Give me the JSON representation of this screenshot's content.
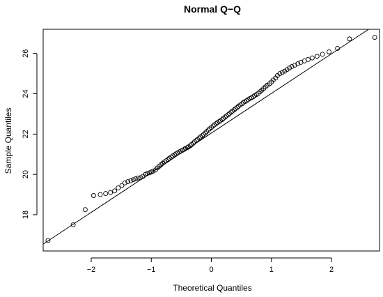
{
  "chart_data": {
    "type": "scatter",
    "title": "Normal Q−Q",
    "xlabel": "Theoretical Quantiles",
    "ylabel": "Sample Quantiles",
    "xlim": [
      -2.8,
      2.8
    ],
    "ylim": [
      16.2,
      27.2
    ],
    "xticks": [
      -2,
      -1,
      0,
      1,
      2
    ],
    "xtick_labels": [
      "−2",
      "−1",
      "0",
      "1",
      "2"
    ],
    "yticks": [
      18,
      20,
      22,
      24,
      26
    ],
    "ytick_labels": [
      "18",
      "20",
      "22",
      "24",
      "26"
    ],
    "grid": false,
    "reference_line": {
      "x1": -3.0,
      "y1": 16.15,
      "x2": 3.0,
      "y2": 27.95
    },
    "points": [
      [
        -2.72,
        16.72
      ],
      [
        -2.3,
        17.5
      ],
      [
        -2.1,
        18.25
      ],
      [
        -1.96,
        18.95
      ],
      [
        -1.85,
        19.0
      ],
      [
        -1.76,
        19.05
      ],
      [
        -1.68,
        19.1
      ],
      [
        -1.61,
        19.18
      ],
      [
        -1.55,
        19.33
      ],
      [
        -1.49,
        19.45
      ],
      [
        -1.44,
        19.58
      ],
      [
        -1.39,
        19.64
      ],
      [
        -1.34,
        19.69
      ],
      [
        -1.3,
        19.74
      ],
      [
        -1.26,
        19.78
      ],
      [
        -1.22,
        19.82
      ],
      [
        -1.18,
        19.84
      ],
      [
        -1.14,
        19.9
      ],
      [
        -1.1,
        20.0
      ],
      [
        -1.07,
        20.04
      ],
      [
        -1.03,
        20.08
      ],
      [
        -1.0,
        20.12
      ],
      [
        -0.97,
        20.16
      ],
      [
        -0.93,
        20.22
      ],
      [
        -0.9,
        20.32
      ],
      [
        -0.87,
        20.4
      ],
      [
        -0.84,
        20.48
      ],
      [
        -0.81,
        20.55
      ],
      [
        -0.78,
        20.62
      ],
      [
        -0.75,
        20.68
      ],
      [
        -0.72,
        20.74
      ],
      [
        -0.7,
        20.8
      ],
      [
        -0.67,
        20.86
      ],
      [
        -0.64,
        20.92
      ],
      [
        -0.61,
        20.97
      ],
      [
        -0.59,
        21.02
      ],
      [
        -0.56,
        21.07
      ],
      [
        -0.53,
        21.12
      ],
      [
        -0.51,
        21.16
      ],
      [
        -0.48,
        21.2
      ],
      [
        -0.45,
        21.25
      ],
      [
        -0.43,
        21.29
      ],
      [
        -0.4,
        21.33
      ],
      [
        -0.38,
        21.37
      ],
      [
        -0.35,
        21.42
      ],
      [
        -0.33,
        21.48
      ],
      [
        -0.3,
        21.55
      ],
      [
        -0.28,
        21.62
      ],
      [
        -0.25,
        21.68
      ],
      [
        -0.23,
        21.74
      ],
      [
        -0.2,
        21.8
      ],
      [
        -0.18,
        21.86
      ],
      [
        -0.15,
        21.92
      ],
      [
        -0.13,
        21.98
      ],
      [
        -0.1,
        22.05
      ],
      [
        -0.08,
        22.12
      ],
      [
        -0.05,
        22.19
      ],
      [
        -0.03,
        22.26
      ],
      [
        0.0,
        22.33
      ],
      [
        0.03,
        22.4
      ],
      [
        0.05,
        22.46
      ],
      [
        0.08,
        22.52
      ],
      [
        0.1,
        22.57
      ],
      [
        0.13,
        22.62
      ],
      [
        0.15,
        22.67
      ],
      [
        0.18,
        22.72
      ],
      [
        0.2,
        22.78
      ],
      [
        0.23,
        22.84
      ],
      [
        0.25,
        22.9
      ],
      [
        0.28,
        22.96
      ],
      [
        0.3,
        23.02
      ],
      [
        0.33,
        23.08
      ],
      [
        0.35,
        23.14
      ],
      [
        0.38,
        23.2
      ],
      [
        0.4,
        23.26
      ],
      [
        0.43,
        23.32
      ],
      [
        0.45,
        23.38
      ],
      [
        0.48,
        23.44
      ],
      [
        0.51,
        23.5
      ],
      [
        0.53,
        23.56
      ],
      [
        0.56,
        23.61
      ],
      [
        0.59,
        23.66
      ],
      [
        0.61,
        23.71
      ],
      [
        0.64,
        23.76
      ],
      [
        0.67,
        23.81
      ],
      [
        0.7,
        23.86
      ],
      [
        0.72,
        23.91
      ],
      [
        0.75,
        23.96
      ],
      [
        0.78,
        24.02
      ],
      [
        0.81,
        24.1
      ],
      [
        0.84,
        24.18
      ],
      [
        0.87,
        24.26
      ],
      [
        0.9,
        24.34
      ],
      [
        0.93,
        24.42
      ],
      [
        0.97,
        24.5
      ],
      [
        1.0,
        24.58
      ],
      [
        1.03,
        24.68
      ],
      [
        1.07,
        24.78
      ],
      [
        1.1,
        24.9
      ],
      [
        1.14,
        25.0
      ],
      [
        1.18,
        25.06
      ],
      [
        1.22,
        25.12
      ],
      [
        1.26,
        25.2
      ],
      [
        1.3,
        25.28
      ],
      [
        1.34,
        25.35
      ],
      [
        1.39,
        25.42
      ],
      [
        1.44,
        25.49
      ],
      [
        1.49,
        25.56
      ],
      [
        1.55,
        25.63
      ],
      [
        1.61,
        25.7
      ],
      [
        1.68,
        25.78
      ],
      [
        1.76,
        25.86
      ],
      [
        1.85,
        25.96
      ],
      [
        1.96,
        26.08
      ],
      [
        2.1,
        26.25
      ],
      [
        2.3,
        26.72
      ],
      [
        2.72,
        26.8
      ]
    ]
  }
}
